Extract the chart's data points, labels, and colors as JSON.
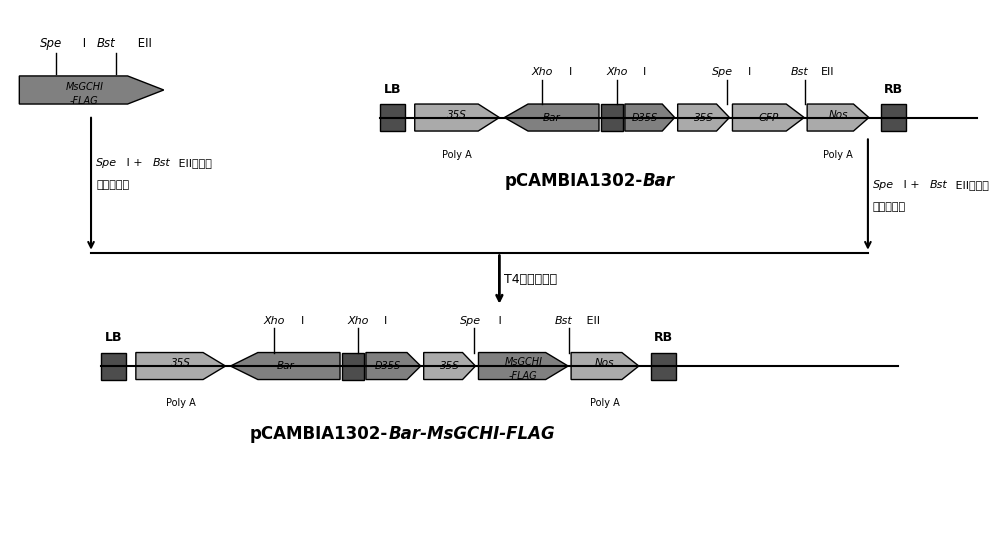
{
  "bg_color": "#ffffff",
  "dark_gray": "#4d4d4d",
  "mid_gray": "#808080",
  "light_gray": "#aaaaaa",
  "black": "#000000",
  "title1": "pCAMBIA1302-",
  "title1_italic": "Bar",
  "title2": "pCAMBIA1302-",
  "title2_italic": "Bar-MsGCHI-FLAG",
  "figsize": [
    10.0,
    5.43
  ]
}
